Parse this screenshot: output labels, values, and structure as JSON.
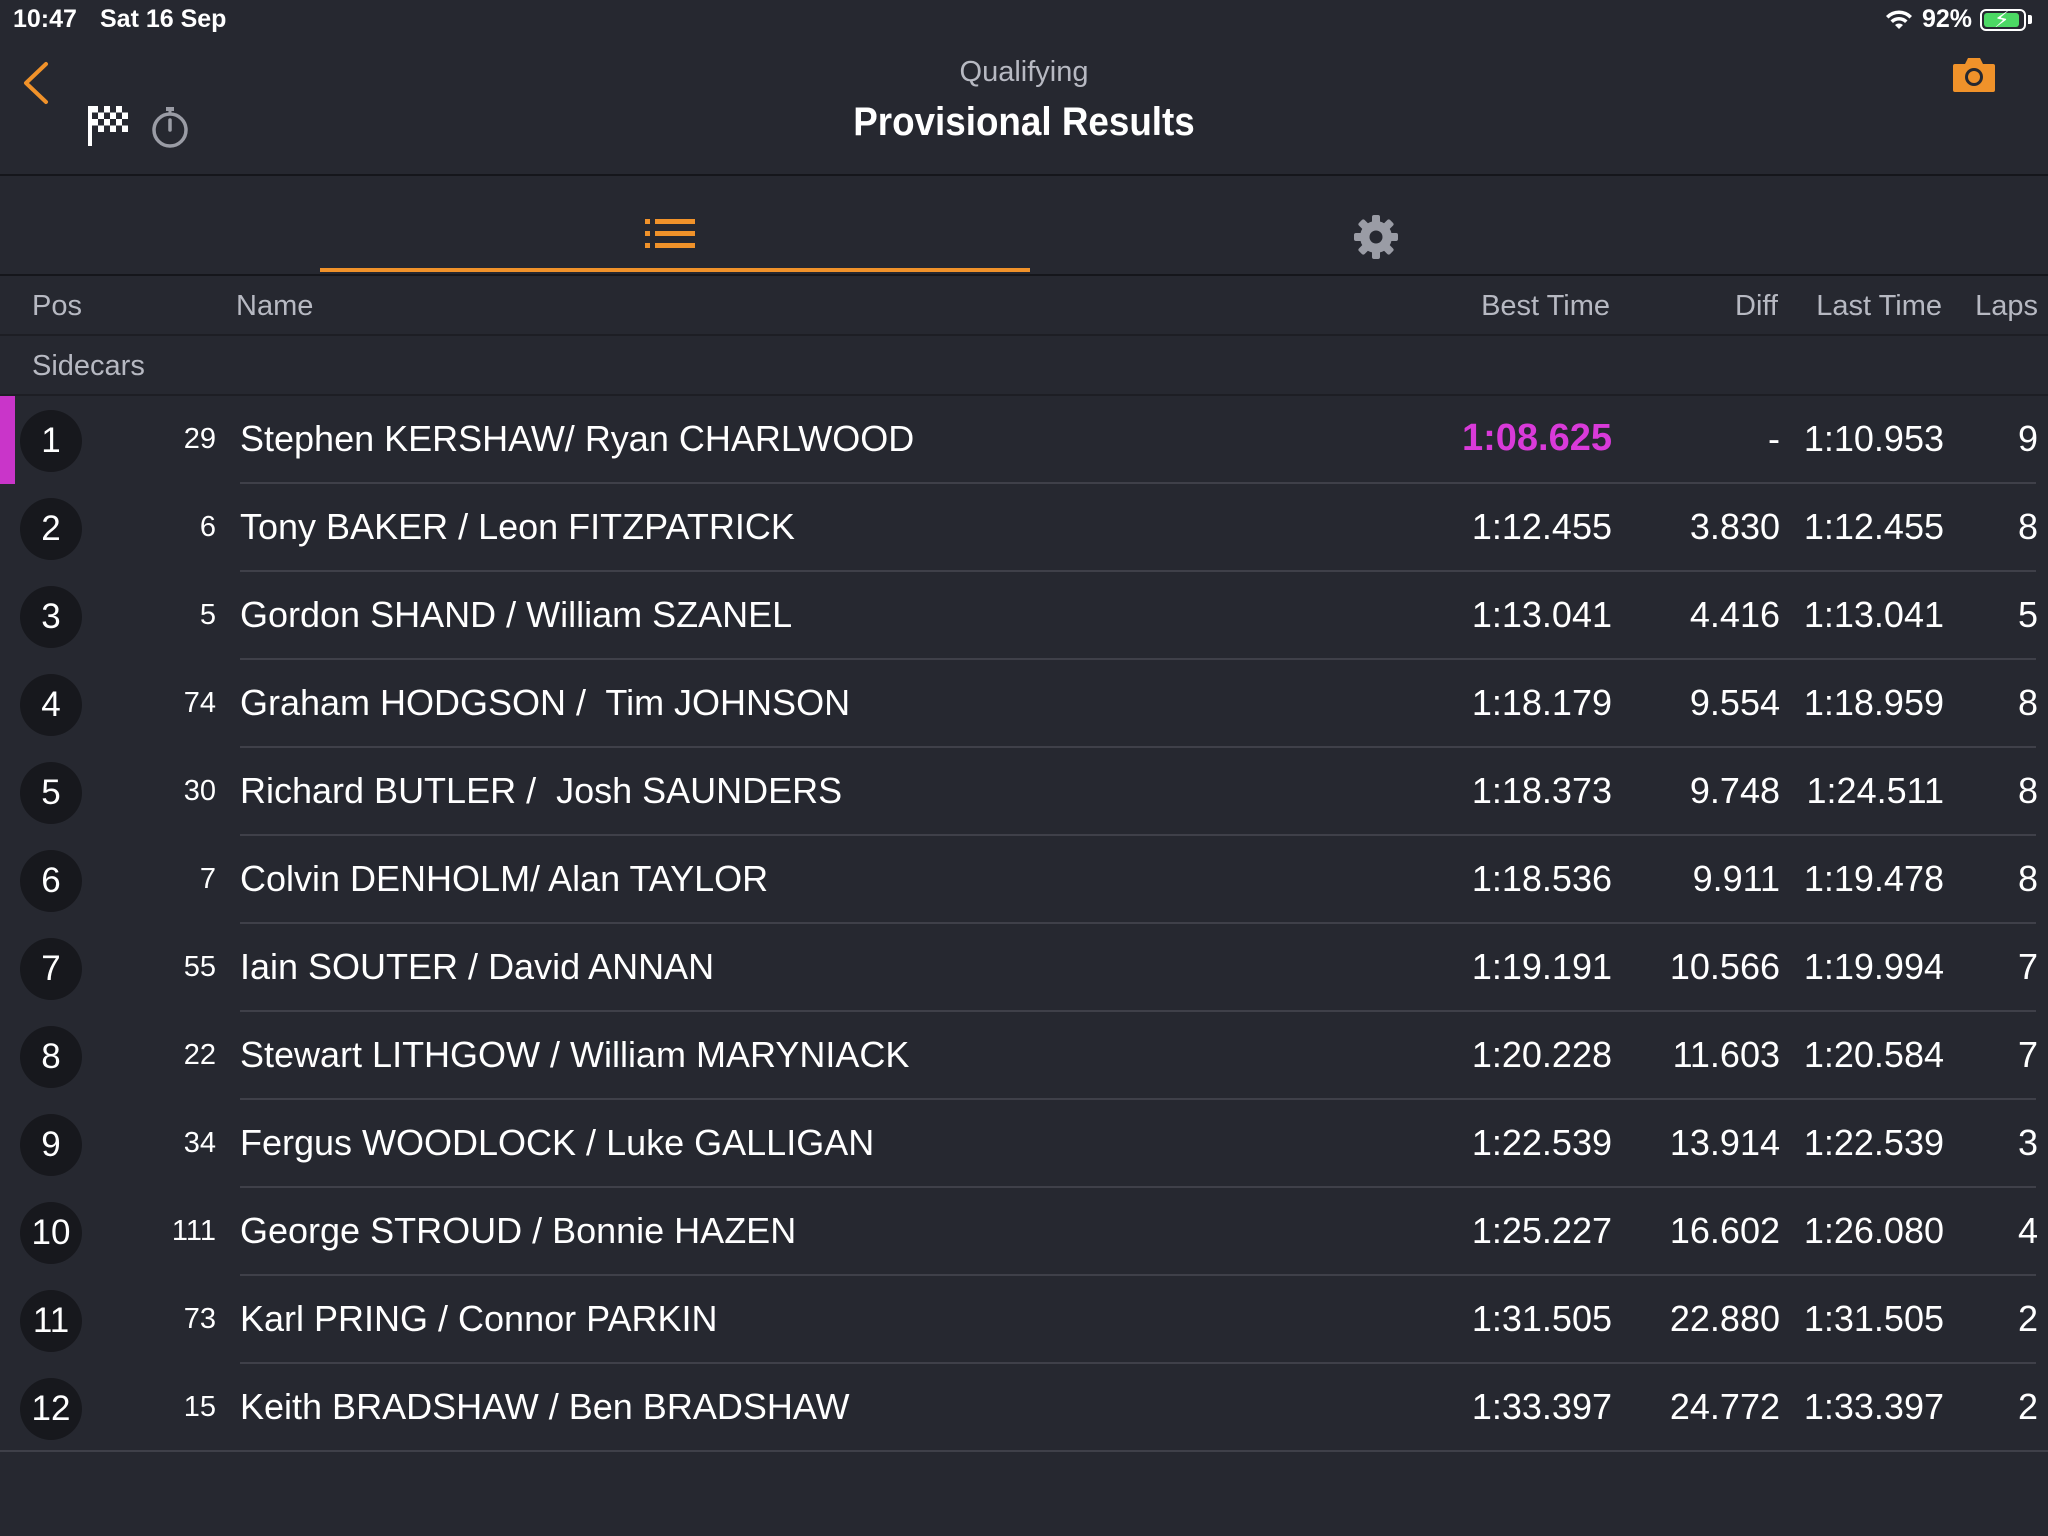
{
  "status_bar": {
    "time": "10:47",
    "date": "Sat 16 Sep",
    "battery": "92%"
  },
  "header": {
    "subtitle": "Qualifying",
    "title": "Provisional Results"
  },
  "icons": {
    "back": "chevron-left-icon",
    "flag": "checkered-flag-icon",
    "stopwatch": "stopwatch-icon",
    "camera": "camera-icon",
    "list": "list-icon",
    "settings": "gear-icon"
  },
  "colors": {
    "accent": "#f0922a",
    "fastest": "#d93ad9",
    "background": "#262830"
  },
  "columns": {
    "pos": "Pos",
    "name": "Name",
    "best": "Best Time",
    "diff": "Diff",
    "last": "Last Time",
    "laps": "Laps"
  },
  "group": "Sidecars",
  "rows": [
    {
      "pos": "1",
      "num": "29",
      "name": "Stephen KERSHAW/ Ryan CHARLWOOD",
      "best": "1:08.625",
      "diff": "-",
      "last": "1:10.953",
      "laps": "9"
    },
    {
      "pos": "2",
      "num": "6",
      "name": "Tony BAKER / Leon FITZPATRICK",
      "best": "1:12.455",
      "diff": "3.830",
      "last": "1:12.455",
      "laps": "8"
    },
    {
      "pos": "3",
      "num": "5",
      "name": "Gordon SHAND / William SZANEL",
      "best": "1:13.041",
      "diff": "4.416",
      "last": "1:13.041",
      "laps": "5"
    },
    {
      "pos": "4",
      "num": "74",
      "name": "Graham HODGSON /  Tim JOHNSON",
      "best": "1:18.179",
      "diff": "9.554",
      "last": "1:18.959",
      "laps": "8"
    },
    {
      "pos": "5",
      "num": "30",
      "name": "Richard BUTLER /  Josh SAUNDERS",
      "best": "1:18.373",
      "diff": "9.748",
      "last": "1:24.511",
      "laps": "8"
    },
    {
      "pos": "6",
      "num": "7",
      "name": "Colvin DENHOLM/ Alan TAYLOR",
      "best": "1:18.536",
      "diff": "9.911",
      "last": "1:19.478",
      "laps": "8"
    },
    {
      "pos": "7",
      "num": "55",
      "name": "Iain SOUTER / David ANNAN",
      "best": "1:19.191",
      "diff": "10.566",
      "last": "1:19.994",
      "laps": "7"
    },
    {
      "pos": "8",
      "num": "22",
      "name": "Stewart LITHGOW / William MARYNIACK",
      "best": "1:20.228",
      "diff": "11.603",
      "last": "1:20.584",
      "laps": "7"
    },
    {
      "pos": "9",
      "num": "34",
      "name": "Fergus WOODLOCK / Luke GALLIGAN",
      "best": "1:22.539",
      "diff": "13.914",
      "last": "1:22.539",
      "laps": "3"
    },
    {
      "pos": "10",
      "num": "111",
      "name": "George STROUD / Bonnie HAZEN",
      "best": "1:25.227",
      "diff": "16.602",
      "last": "1:26.080",
      "laps": "4"
    },
    {
      "pos": "11",
      "num": "73",
      "name": "Karl PRING / Connor PARKIN",
      "best": "1:31.505",
      "diff": "22.880",
      "last": "1:31.505",
      "laps": "2"
    },
    {
      "pos": "12",
      "num": "15",
      "name": "Keith BRADSHAW / Ben BRADSHAW",
      "best": "1:33.397",
      "diff": "24.772",
      "last": "1:33.397",
      "laps": "2"
    }
  ]
}
